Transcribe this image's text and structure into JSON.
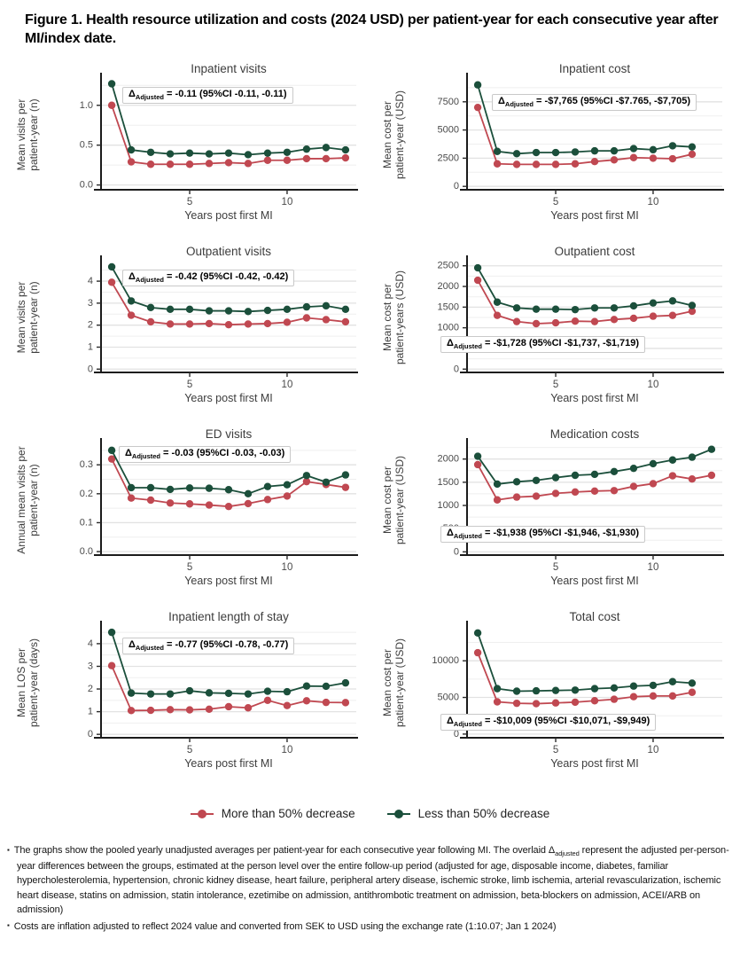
{
  "figure": {
    "title": "Figure 1. Health resource utilization and costs (2024 USD) per patient-year for each consecutive year after MI/index date."
  },
  "legend": {
    "items": [
      {
        "label": "More than 50% decrease",
        "color": "#c04851"
      },
      {
        "label": "Less than 50% decrease",
        "color": "#1b4f3b"
      }
    ]
  },
  "footnotes": [
    {
      "parts": [
        "The graphs show the pooled yearly unadjusted averages per patient-year for each consecutive year following MI. The overlaid ",
        "Δ",
        "adjusted",
        " represent the adjusted per-person-year differences between the groups, estimated at the person level over the entire follow-up period (adjusted for age, disposable income, diabetes, familiar hypercholesterolemia, hypertension, chronic kidney disease, heart failure, peripheral artery disease, ischemic stroke, limb ischemia, arterial revascularization, ischemic heart disease, statins on admission, statin intolerance, ezetimibe on admission, antithrombotic treatment on admission, beta-blockers on admission, ACEI/ARB on admission)"
      ]
    },
    {
      "parts": [
        "Costs are inflation adjusted to reflect 2024 value and converted from SEK to USD using the exchange rate (1:10.07; Jan 1 2024)"
      ]
    }
  ],
  "chart_data": [
    {
      "id": "inpatient-visits",
      "type": "line",
      "title": "Inpatient visits",
      "xlabel": "Years post first MI",
      "ylabel_lines": [
        "Mean visits per",
        "patient-year (n)"
      ],
      "x": [
        1,
        2,
        3,
        4,
        5,
        6,
        7,
        8,
        9,
        10,
        11,
        12,
        13
      ],
      "series": [
        {
          "name": "More than 50% decrease",
          "color": "#c04851",
          "values": [
            1.0,
            0.29,
            0.26,
            0.26,
            0.26,
            0.27,
            0.28,
            0.27,
            0.31,
            0.31,
            0.33,
            0.33,
            0.34
          ]
        },
        {
          "name": "Less than 50% decrease",
          "color": "#1b4f3b",
          "values": [
            1.27,
            0.44,
            0.41,
            0.39,
            0.4,
            0.39,
            0.4,
            0.38,
            0.4,
            0.41,
            0.45,
            0.47,
            0.44
          ]
        }
      ],
      "ylim": [
        -0.06,
        1.32
      ],
      "yticks": [
        0,
        0.5,
        1
      ],
      "ytick_labels": [
        "0.0",
        "0.5",
        "1.0"
      ],
      "minor_step": 0.25,
      "xlim": [
        0.45,
        13.55
      ],
      "xticks": [
        5,
        10
      ],
      "grid": "horizontal",
      "annotation": {
        "prefix": "Δ",
        "sub": "Adjusted",
        "text": "= -0.11 (95%CI -0.11, -0.11)",
        "pos": "top",
        "x": 124,
        "y": 30
      }
    },
    {
      "id": "inpatient-cost",
      "type": "line",
      "title": "Inpatient cost",
      "xlabel": "Years post first MI",
      "ylabel_lines": [
        "Mean cost per",
        "patient-year (USD)"
      ],
      "x": [
        1,
        2,
        3,
        4,
        5,
        6,
        7,
        8,
        9,
        10,
        11,
        12
      ],
      "series": [
        {
          "name": "More than 50% decrease",
          "color": "#c04851",
          "values": [
            7000,
            2000,
            1950,
            1950,
            1950,
            2000,
            2200,
            2350,
            2550,
            2500,
            2450,
            2850
          ]
        },
        {
          "name": "Less than 50% decrease",
          "color": "#1b4f3b",
          "values": [
            9000,
            3100,
            2900,
            3000,
            3000,
            3050,
            3150,
            3150,
            3350,
            3250,
            3600,
            3500
          ]
        }
      ],
      "ylim": [
        -300,
        9450
      ],
      "yticks": [
        0,
        2500,
        5000,
        7500
      ],
      "ytick_labels": [
        "0",
        "2500",
        "5000",
        "7500"
      ],
      "minor_step": 1250,
      "xlim": [
        0.45,
        13.55
      ],
      "xticks": [
        5,
        10
      ],
      "grid": "horizontal",
      "annotation": {
        "prefix": "Δ",
        "sub": "Adjusted",
        "text": "= -$7,765 (95%CI -$7.765, -$7,705)",
        "pos": "top",
        "x": 128,
        "y": 38
      }
    },
    {
      "id": "outpatient-visits",
      "type": "line",
      "title": "Outpatient visits",
      "xlabel": "Years post first MI",
      "ylabel_lines": [
        "Mean visits per",
        "patient-year (n)"
      ],
      "x": [
        1,
        2,
        3,
        4,
        5,
        6,
        7,
        8,
        9,
        10,
        11,
        12,
        13
      ],
      "series": [
        {
          "name": "More than 50% decrease",
          "color": "#c04851",
          "values": [
            3.95,
            2.45,
            2.15,
            2.05,
            2.05,
            2.07,
            2.02,
            2.05,
            2.07,
            2.13,
            2.33,
            2.25,
            2.15
          ]
        },
        {
          "name": "Less than 50% decrease",
          "color": "#1b4f3b",
          "values": [
            4.65,
            3.1,
            2.8,
            2.72,
            2.72,
            2.65,
            2.65,
            2.62,
            2.67,
            2.72,
            2.83,
            2.88,
            2.72
          ]
        }
      ],
      "ylim": [
        -0.15,
        4.85
      ],
      "yticks": [
        0,
        1,
        2,
        3,
        4
      ],
      "ytick_labels": [
        "0",
        "1",
        "2",
        "3",
        "4"
      ],
      "minor_step": 0.5,
      "xlim": [
        0.45,
        13.55
      ],
      "xticks": [
        5,
        10
      ],
      "grid": "horizontal",
      "annotation": {
        "prefix": "Δ",
        "sub": "Adjusted",
        "text": "= -0.42 (95%CI -0.42, -0.42)",
        "pos": "top",
        "x": 124,
        "y": 30
      }
    },
    {
      "id": "outpatient-cost",
      "type": "line",
      "title": "Outpatient cost",
      "xlabel": "Years post first MI",
      "ylabel_lines": [
        "Mean cost per",
        "patient-years (USD)"
      ],
      "x": [
        1,
        2,
        3,
        4,
        5,
        6,
        7,
        8,
        9,
        10,
        11,
        12
      ],
      "series": [
        {
          "name": "More than 50% decrease",
          "color": "#c04851",
          "values": [
            2150,
            1300,
            1150,
            1100,
            1120,
            1160,
            1150,
            1200,
            1230,
            1280,
            1300,
            1400
          ]
        },
        {
          "name": "Less than 50% decrease",
          "color": "#1b4f3b",
          "values": [
            2450,
            1620,
            1480,
            1450,
            1450,
            1440,
            1480,
            1480,
            1530,
            1600,
            1650,
            1540
          ]
        }
      ],
      "ylim": [
        -80,
        2580
      ],
      "yticks": [
        0,
        500,
        1000,
        1500,
        2000,
        2500
      ],
      "ytick_labels": [
        "0",
        "500",
        "1000",
        "1500",
        "2000",
        "2500"
      ],
      "minor_step": 250,
      "xlim": [
        0.45,
        13.55
      ],
      "xticks": [
        5,
        10
      ],
      "grid": "horizontal",
      "annotation": {
        "prefix": "Δ",
        "sub": "Adjusted",
        "text": "= -$1,728 (95%CI -$1,737, -$1,719)",
        "pos": "bottom",
        "x": 70,
        "y": 105
      }
    },
    {
      "id": "ed-visits",
      "type": "line",
      "title": "ED visits",
      "xlabel": "Years post first MI",
      "ylabel_lines": [
        "Annual mean visits per",
        "patient-year (n)"
      ],
      "x": [
        1,
        2,
        3,
        4,
        5,
        6,
        7,
        8,
        9,
        10,
        11,
        12,
        13
      ],
      "series": [
        {
          "name": "More than 50% decrease",
          "color": "#c04851",
          "values": [
            0.32,
            0.185,
            0.178,
            0.168,
            0.165,
            0.161,
            0.156,
            0.166,
            0.18,
            0.192,
            0.242,
            0.232,
            0.222
          ]
        },
        {
          "name": "Less than 50% decrease",
          "color": "#1b4f3b",
          "values": [
            0.35,
            0.221,
            0.221,
            0.215,
            0.22,
            0.219,
            0.214,
            0.2,
            0.225,
            0.231,
            0.263,
            0.24,
            0.265
          ]
        }
      ],
      "ylim": [
        -0.012,
        0.368
      ],
      "yticks": [
        0,
        0.1,
        0.2,
        0.3
      ],
      "ytick_labels": [
        "0.0",
        "0.1",
        "0.2",
        "0.3"
      ],
      "minor_step": 0.05,
      "xlim": [
        0.45,
        13.55
      ],
      "xticks": [
        5,
        10
      ],
      "grid": "horizontal",
      "annotation": {
        "prefix": "Δ",
        "sub": "Adjusted",
        "text": "= -0.03 (95%CI -0.03, -0.03)",
        "pos": "top",
        "x": 120,
        "y": 23
      }
    },
    {
      "id": "medication-costs",
      "type": "line",
      "title": "Medication costs",
      "xlabel": "Years post first MI",
      "ylabel_lines": [
        "Mean cost per",
        "patient-year (USD)"
      ],
      "x": [
        1,
        2,
        3,
        4,
        5,
        6,
        7,
        8,
        9,
        10,
        11,
        12,
        13
      ],
      "series": [
        {
          "name": "More than 50% decrease",
          "color": "#c04851",
          "values": [
            1880,
            1120,
            1180,
            1200,
            1260,
            1290,
            1310,
            1320,
            1410,
            1470,
            1640,
            1570,
            1650
          ]
        },
        {
          "name": "Less than 50% decrease",
          "color": "#1b4f3b",
          "values": [
            2060,
            1460,
            1510,
            1540,
            1600,
            1650,
            1670,
            1730,
            1800,
            1900,
            1980,
            2040,
            2210
          ]
        }
      ],
      "ylim": [
        -70,
        2300
      ],
      "yticks": [
        0,
        500,
        1000,
        1500,
        2000
      ],
      "ytick_labels": [
        "0",
        "500",
        "1000",
        "1500",
        "2000"
      ],
      "minor_step": 250,
      "xlim": [
        0.45,
        13.55
      ],
      "xticks": [
        5,
        10
      ],
      "grid": "horizontal",
      "annotation": {
        "prefix": "Δ",
        "sub": "Adjusted",
        "text": "= -$1,938 (95%CI -$1,946, -$1,930)",
        "pos": "bottom",
        "x": 70,
        "y": 113
      }
    },
    {
      "id": "inpatient-length-of-stay",
      "type": "line",
      "title": "Inpatient length of stay",
      "xlabel": "Years post first MI",
      "ylabel_lines": [
        "Mean LOS per",
        "patient-year (days)"
      ],
      "x": [
        1,
        2,
        3,
        4,
        5,
        6,
        7,
        8,
        9,
        10,
        11,
        12,
        13
      ],
      "series": [
        {
          "name": "More than 50% decrease",
          "color": "#c04851",
          "values": [
            3.03,
            1.05,
            1.06,
            1.09,
            1.08,
            1.11,
            1.22,
            1.17,
            1.5,
            1.27,
            1.48,
            1.41,
            1.4
          ]
        },
        {
          "name": "Less than 50% decrease",
          "color": "#1b4f3b",
          "values": [
            4.5,
            1.82,
            1.78,
            1.78,
            1.92,
            1.83,
            1.81,
            1.78,
            1.9,
            1.88,
            2.13,
            2.12,
            2.27
          ]
        }
      ],
      "ylim": [
        -0.15,
        4.7
      ],
      "yticks": [
        0,
        1,
        2,
        3,
        4
      ],
      "ytick_labels": [
        "0",
        "1",
        "2",
        "3",
        "4"
      ],
      "minor_step": 0.5,
      "xlim": [
        0.45,
        13.55
      ],
      "xticks": [
        5,
        10
      ],
      "grid": "horizontal",
      "annotation": {
        "prefix": "Δ",
        "sub": "Adjusted",
        "text": "= -0.77 (95%CI -0.78, -0.77)",
        "pos": "top",
        "x": 124,
        "y": 33
      }
    },
    {
      "id": "total-cost",
      "type": "line",
      "title": "Total cost",
      "xlabel": "Years post first MI",
      "ylabel_lines": [
        "Mean cost per",
        "patient-year (USD)"
      ],
      "x": [
        1,
        2,
        3,
        4,
        5,
        6,
        7,
        8,
        9,
        10,
        11,
        12
      ],
      "series": [
        {
          "name": "More than 50% decrease",
          "color": "#c04851",
          "values": [
            11100,
            4400,
            4200,
            4150,
            4250,
            4350,
            4550,
            4750,
            5100,
            5200,
            5200,
            5700
          ]
        },
        {
          "name": "Less than 50% decrease",
          "color": "#1b4f3b",
          "values": [
            13800,
            6200,
            5850,
            5900,
            5950,
            6000,
            6200,
            6300,
            6550,
            6650,
            7150,
            6950
          ]
        }
      ],
      "ylim": [
        -500,
        14500
      ],
      "yticks": [
        0,
        5000,
        10000
      ],
      "ytick_labels": [
        "0",
        "5000",
        "10000"
      ],
      "minor_step": 2500,
      "xlim": [
        0.45,
        13.55
      ],
      "xticks": [
        5,
        10
      ],
      "grid": "horizontal",
      "annotation": {
        "prefix": "Δ",
        "sub": "Adjusted",
        "text": "= -$10,009 (95%CI -$10,071, -$9,949)",
        "pos": "bottom",
        "x": 70,
        "y": 119
      }
    }
  ]
}
